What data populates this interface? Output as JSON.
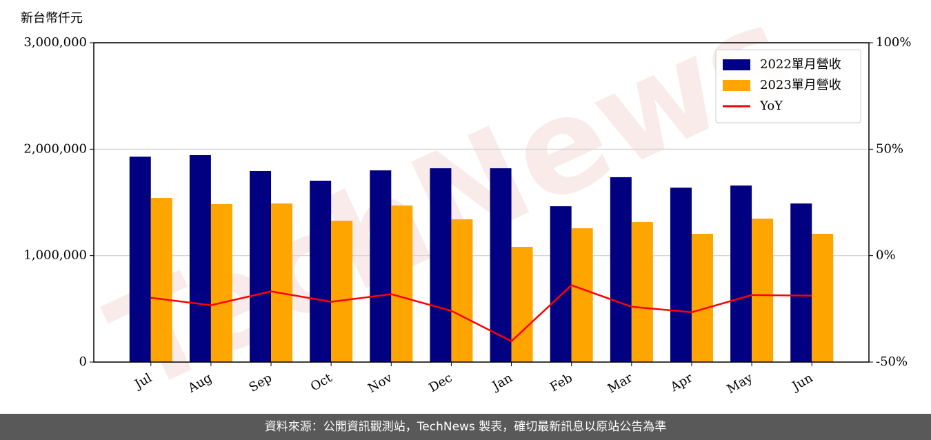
{
  "chart_data": {
    "type": "bar",
    "y_label": "新台幣仟元",
    "watermark": "TechNews",
    "categories": [
      "Jul",
      "Aug",
      "Sep",
      "Oct",
      "Nov",
      "Dec",
      "Jan",
      "Feb",
      "Mar",
      "Apr",
      "May",
      "Jun"
    ],
    "series": [
      {
        "name": "2022單月營收",
        "color": "#000080",
        "values": [
          1930000,
          1944000,
          1795000,
          1704000,
          1801000,
          1821000,
          1821000,
          1464000,
          1737000,
          1639000,
          1659000,
          1490000
        ]
      },
      {
        "name": "2023單月營收",
        "color": "#ffa500",
        "values": [
          1542000,
          1484000,
          1490000,
          1328000,
          1471000,
          1341000,
          1082000,
          1257000,
          1315000,
          1205000,
          1348000,
          1205000
        ]
      },
      {
        "name": "YoY",
        "type": "line",
        "axis": "y2",
        "color": "#ff0000",
        "values": [
          -19.8,
          -23.3,
          -16.8,
          -21.7,
          -18.1,
          -25.9,
          -40.2,
          -13.9,
          -24.0,
          -26.6,
          -18.5,
          -18.8
        ]
      }
    ],
    "ylim": [
      0,
      3000000
    ],
    "yticks": [
      0,
      {
        "value": 1000000,
        "label": "1,000,000"
      },
      {
        "value": 2000000,
        "label": "2,000,000"
      },
      {
        "value": 3000000,
        "label": "3,000,000"
      }
    ],
    "y2lim": [
      -50,
      100
    ],
    "y2ticks": [
      {
        "value": -50,
        "label": "-50%"
      },
      {
        "value": 0,
        "label": "0%"
      },
      {
        "value": 50,
        "label": "50%"
      },
      {
        "value": 100,
        "label": "100%"
      }
    ],
    "grid": true,
    "legend": "upper right",
    "footer": "資料來源：公開資訊觀測站，TechNews 製表，確切最新訊息以原站公告為準"
  }
}
